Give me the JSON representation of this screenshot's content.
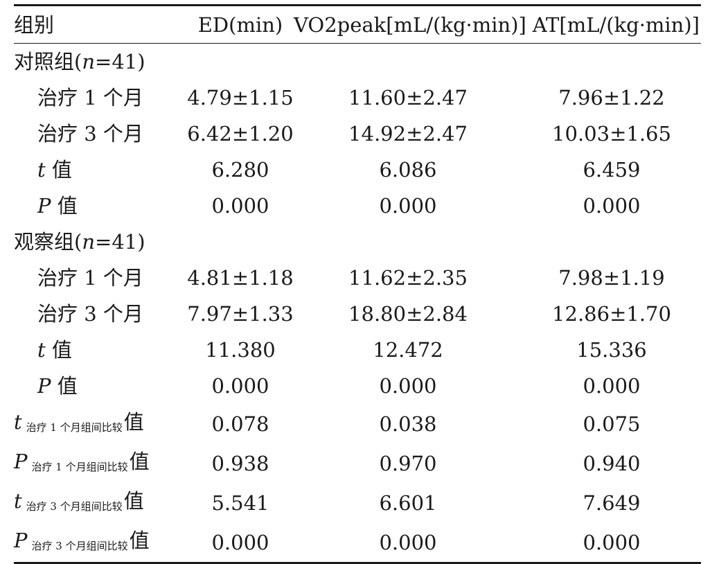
{
  "table": {
    "headers": [
      "组别",
      "ED(min)",
      "VO2peak[mL/(kg·min)]",
      "AT[mL/(kg·min)]"
    ],
    "control_group": {
      "label_prefix": "对照组(",
      "n_var": "n",
      "n_value": "=41)",
      "rows": [
        {
          "label": "治疗 1 个月",
          "ed": "4.79±1.15",
          "vo2": "11.60±2.47",
          "at": "7.96±1.22"
        },
        {
          "label": "治疗 3 个月",
          "ed": "6.42±1.20",
          "vo2": "14.92±2.47",
          "at": "10.03±1.65"
        },
        {
          "stat": "t",
          "suffix": "值",
          "ed": "6.280",
          "vo2": "6.086",
          "at": "6.459"
        },
        {
          "stat": "P",
          "suffix": "值",
          "ed": "0.000",
          "vo2": "0.000",
          "at": "0.000"
        }
      ]
    },
    "observation_group": {
      "label_prefix": "观察组(",
      "n_var": "n",
      "n_value": "=41)",
      "rows": [
        {
          "label": "治疗 1 个月",
          "ed": "4.81±1.18",
          "vo2": "11.62±2.35",
          "at": "7.98±1.19"
        },
        {
          "label": "治疗 3 个月",
          "ed": "7.97±1.33",
          "vo2": "18.80±2.84",
          "at": "12.86±1.70"
        },
        {
          "stat": "t",
          "suffix": "值",
          "ed": "11.380",
          "vo2": "12.472",
          "at": "15.336"
        },
        {
          "stat": "P",
          "suffix": "值",
          "ed": "0.000",
          "vo2": "0.000",
          "at": "0.000"
        }
      ]
    },
    "comparison_rows": [
      {
        "stat": "t",
        "sub": "治疗 1 个月组间比较",
        "suffix": "值",
        "ed": "0.078",
        "vo2": "0.038",
        "at": "0.075"
      },
      {
        "stat": "P",
        "sub": "治疗 1 个月组间比较",
        "suffix": "值",
        "ed": "0.938",
        "vo2": "0.970",
        "at": "0.940"
      },
      {
        "stat": "t",
        "sub": "治疗 3 个月组间比较",
        "suffix": "值",
        "ed": "5.541",
        "vo2": "6.601",
        "at": "7.649"
      },
      {
        "stat": "P",
        "sub": "治疗 3 个月组间比较",
        "suffix": "值",
        "ed": "0.000",
        "vo2": "0.000",
        "at": "0.000"
      }
    ]
  }
}
